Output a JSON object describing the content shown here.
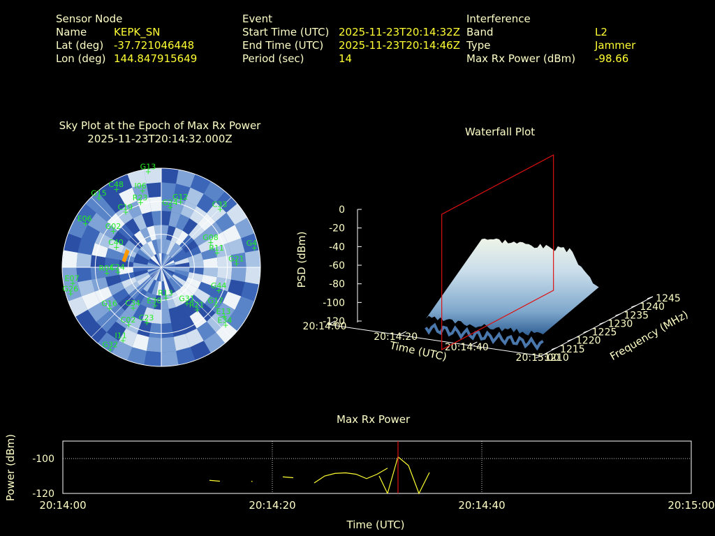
{
  "header": {
    "sensor": {
      "heading": "Sensor Node",
      "name_label": "Name",
      "name": "KEPK_SN",
      "lat_label": "Lat (deg)",
      "lat": "-37.721046448",
      "lon_label": "Lon (deg)",
      "lon": "144.847915649"
    },
    "event": {
      "heading": "Event",
      "start_label": "Start Time (UTC)",
      "start": "2025-11-23T20:14:32Z",
      "end_label": "End Time (UTC)",
      "end": "2025-11-23T20:14:46Z",
      "period_label": "Period (sec)",
      "period": "14"
    },
    "interference": {
      "heading": "Interference",
      "band_label": "Band",
      "band": "L2",
      "type_label": "Type",
      "type": "Jammer",
      "maxrx_label": "Max Rx Power (dBm)",
      "maxrx": "-98.66"
    }
  },
  "colors": {
    "header_text": "#ffffc8",
    "values": "#ffff33",
    "satellites": "#22ee22",
    "marker": "#ff9900",
    "red": "#dd1111"
  },
  "chart_data": [
    {
      "type": "scatter",
      "subtype": "polar-sky-plot",
      "title": "Sky Plot at the Epoch of Max Rx Power",
      "subtitle": "2025-11-23T20:14:32.000Z",
      "satellites": [
        {
          "id": "G13",
          "az": -8,
          "el": 2
        },
        {
          "id": "C48",
          "az": -30,
          "el": 8
        },
        {
          "id": "G15",
          "az": -42,
          "el": 5
        },
        {
          "id": "C19",
          "az": -33,
          "el": 30
        },
        {
          "id": "G02",
          "az": -53,
          "el": 35
        },
        {
          "id": "C40",
          "az": -66,
          "el": 45
        },
        {
          "id": "R23",
          "az": -18,
          "el": 28
        },
        {
          "id": "I06",
          "az": -14,
          "el": 18
        },
        {
          "id": "G24",
          "az": 8,
          "el": 35
        },
        {
          "id": "G12",
          "az": 16,
          "el": 28
        },
        {
          "id": "C33",
          "az": 45,
          "el": 15
        },
        {
          "id": "G4",
          "az": 78,
          "el": 4
        },
        {
          "id": "G08",
          "az": 63,
          "el": 40
        },
        {
          "id": "R11",
          "az": 75,
          "el": 38
        },
        {
          "id": "G21",
          "az": 87,
          "el": 22
        },
        {
          "id": "E06",
          "az": -60,
          "el": 10
        },
        {
          "id": "E07",
          "az": -100,
          "el": 8
        },
        {
          "id": "G26",
          "az": -106,
          "el": 4
        },
        {
          "id": "G16",
          "az": -128,
          "el": 30
        },
        {
          "id": "C34",
          "az": -145,
          "el": 45
        },
        {
          "id": "E30",
          "az": -170,
          "el": 55
        },
        {
          "id": "R13",
          "az": 172,
          "el": 62
        },
        {
          "id": "G31",
          "az": 145,
          "el": 50
        },
        {
          "id": "G17",
          "az": 125,
          "el": 30
        },
        {
          "id": "E34",
          "az": 132,
          "el": 12
        },
        {
          "id": "C02",
          "az": -150,
          "el": 30
        },
        {
          "id": "I11",
          "az": -152,
          "el": 15
        },
        {
          "id": "G32",
          "az": -148,
          "el": 2
        },
        {
          "id": "R21",
          "az": 140,
          "el": 40
        },
        {
          "id": "G44",
          "az": 112,
          "el": 34
        },
        {
          "id": "E13",
          "az": 128,
          "el": 18
        },
        {
          "id": "C24",
          "az": -96,
          "el": 50
        },
        {
          "id": "R04",
          "az": -96,
          "el": 40
        },
        {
          "id": "C23",
          "az": -165,
          "el": 38
        }
      ],
      "max_rx_marker": {
        "az": -72,
        "el": 55
      }
    },
    {
      "type": "area",
      "subtype": "3d-waterfall",
      "title": "Waterfall Plot",
      "xlabel": "Time (UTC)",
      "ylabel": "Frequency (MHz)",
      "zlabel": "PSD (dBm)",
      "x_ticks": [
        "20:14:00",
        "20:14:20",
        "20:14:40",
        "20:15:00"
      ],
      "y_ticks": [
        1210,
        1215,
        1220,
        1225,
        1230,
        1235,
        1240,
        1245
      ],
      "z_ticks": [
        0,
        -20,
        -40,
        -60,
        -80,
        -100,
        -120
      ],
      "zlim": [
        -120,
        0
      ],
      "marker_time": "20:14:32"
    },
    {
      "type": "line",
      "title": "Max Rx Power",
      "xlabel": "Time (UTC)",
      "ylabel": "Power (dBm)",
      "x_ticks": [
        "20:14:00",
        "20:14:20",
        "20:14:40",
        "20:15:00"
      ],
      "xlim": [
        0,
        60
      ],
      "ylim": [
        -120,
        -90
      ],
      "y_ticks": [
        -100,
        -120
      ],
      "marker_time": 32,
      "segments": [
        [
          [
            14,
            -112.5
          ],
          [
            15,
            -113
          ]
        ],
        [
          [
            18,
            -113
          ],
          [
            18.1,
            -113.2
          ]
        ],
        [
          [
            21,
            -110.5
          ],
          [
            22,
            -111
          ]
        ],
        [
          [
            24,
            -114
          ],
          [
            25,
            -110
          ],
          [
            26,
            -108.5
          ],
          [
            27,
            -108.2
          ],
          [
            28,
            -109
          ],
          [
            29,
            -111.5
          ],
          [
            30,
            -109
          ],
          [
            31,
            -105.5
          ]
        ],
        [
          [
            30.2,
            -110
          ],
          [
            31,
            -120
          ]
        ],
        [
          [
            31,
            -120
          ],
          [
            32,
            -99
          ],
          [
            33,
            -104
          ],
          [
            34,
            -120
          ],
          [
            35,
            -108
          ]
        ]
      ]
    }
  ]
}
